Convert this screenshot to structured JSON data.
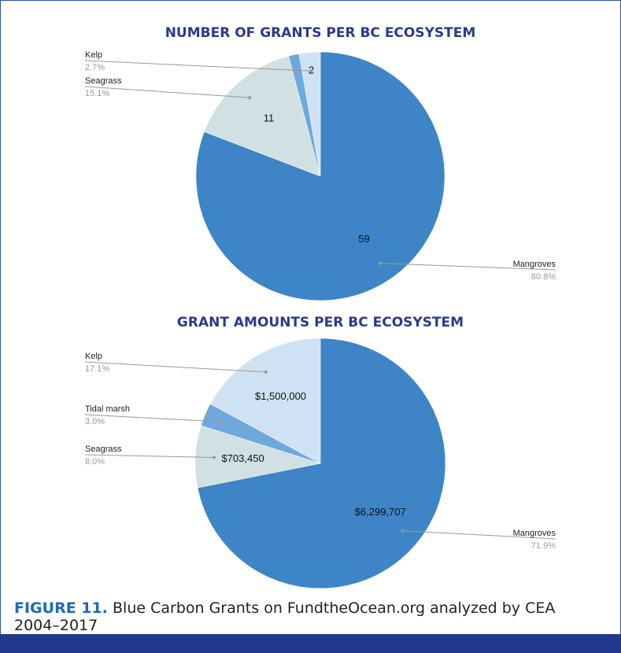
{
  "chart_data": [
    {
      "type": "pie",
      "title": "NUMBER OF GRANTS PER BC ECOSYSTEM",
      "categories": [
        "Mangroves",
        "Seagrass",
        null,
        "Kelp"
      ],
      "values": [
        59,
        11,
        1,
        2
      ],
      "value_labels": [
        "59",
        "11",
        null,
        "2"
      ],
      "percent_labels": [
        "80.8%",
        "15.1%",
        null,
        "2.7%"
      ],
      "colors": [
        "#3d85c6",
        "#d0e0e3",
        "#6fa8dc",
        "#cfe2f3"
      ]
    },
    {
      "type": "pie",
      "title": "GRANT AMOUNTS PER BC ECOSYSTEM",
      "categories": [
        "Mangroves",
        "Seagrass",
        "Tidal marsh",
        "Kelp"
      ],
      "values": [
        6299707,
        703450,
        262000,
        1500000
      ],
      "value_labels": [
        "$6,299,707",
        "$703,450",
        null,
        "$1,500,000"
      ],
      "percent_labels": [
        "71.9%",
        "8.0%",
        "3.0%",
        "17.1%"
      ],
      "colors": [
        "#3d85c6",
        "#d0e0e3",
        "#6fa8dc",
        "#cfe2f3"
      ]
    }
  ],
  "caption": {
    "label": "FIGURE 11.",
    "text": "Blue Carbon Grants on FundtheOcean.org analyzed by CEA 2004–2017"
  }
}
